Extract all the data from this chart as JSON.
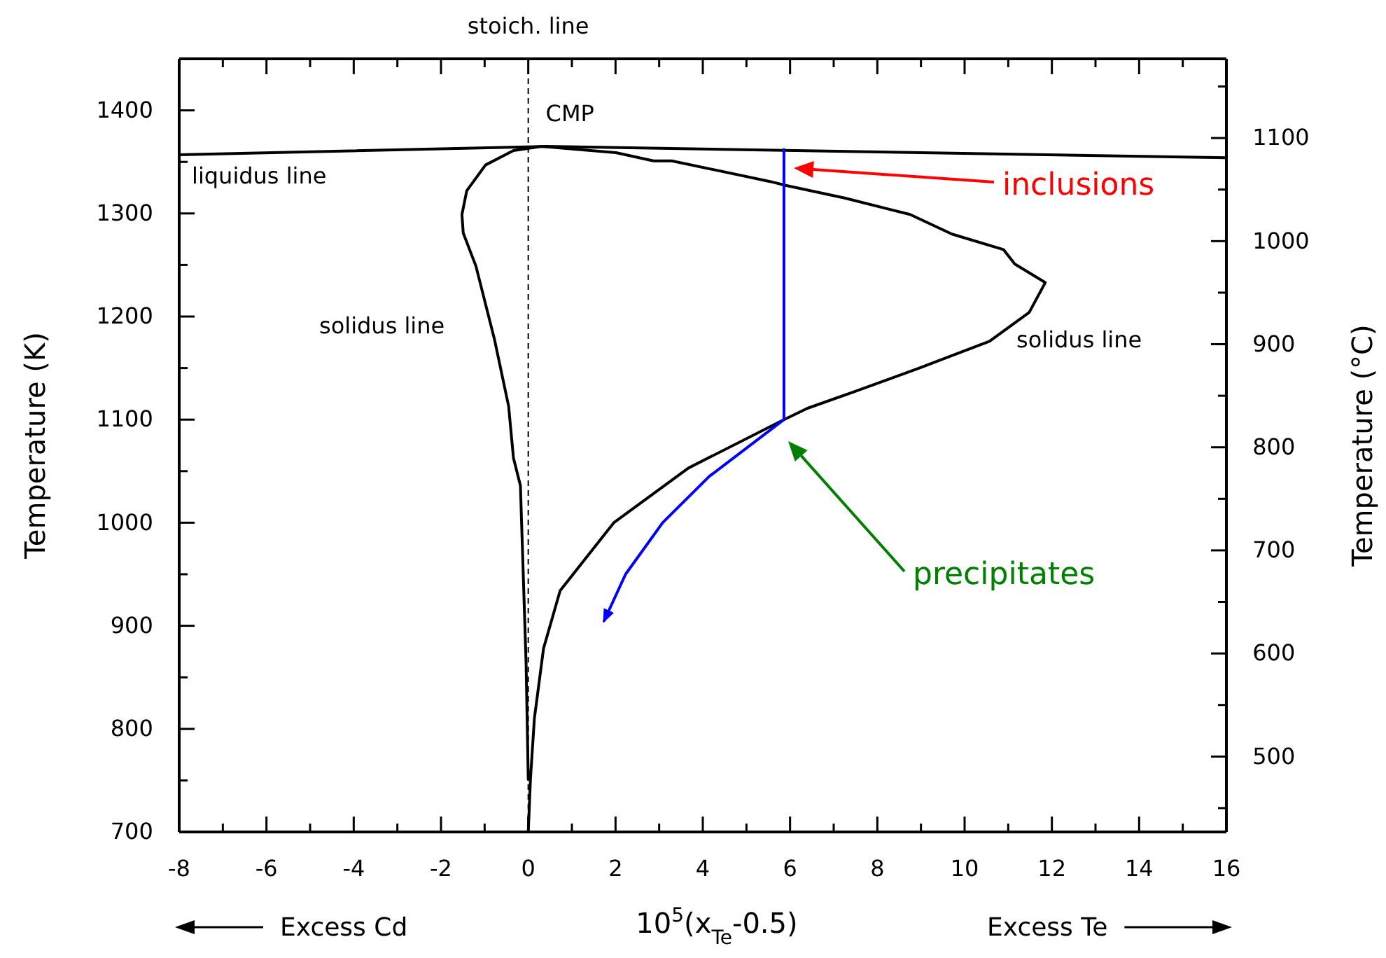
{
  "chart_data": {
    "type": "line",
    "xlabel": "10$^{5}$(x$_{Te}$-0.5)",
    "ylabel": "Temperature (K)",
    "y2label": "Temperature (°C)",
    "xlim": [
      -8,
      16
    ],
    "ylim": [
      700,
      1450
    ],
    "y2lim": [
      426.85,
      1176.85
    ],
    "xticks": [
      -8,
      {
        "value": -7,
        "label": null
      },
      -6,
      {
        "value": -5,
        "label": null
      },
      -4,
      {
        "value": -3,
        "label": null
      },
      -2,
      {
        "value": -1,
        "label": null
      },
      0,
      {
        "value": 1,
        "label": null
      },
      2,
      {
        "value": 3,
        "label": null
      },
      4,
      {
        "value": 5,
        "label": null
      },
      6,
      {
        "value": 7,
        "label": null
      },
      8,
      {
        "value": 9,
        "label": null
      },
      10,
      {
        "value": 11,
        "label": null
      },
      12,
      {
        "value": 13,
        "label": null
      },
      14,
      {
        "value": 15,
        "label": null
      },
      16
    ],
    "yticks": [
      700,
      {
        "value": 750,
        "label": null
      },
      800,
      {
        "value": 850,
        "label": null
      },
      900,
      {
        "value": 950,
        "label": null
      },
      1000,
      {
        "value": 1050,
        "label": null
      },
      1100,
      {
        "value": 1150,
        "label": null
      },
      1200,
      {
        "value": 1250,
        "label": null
      },
      1300,
      {
        "value": 1350,
        "label": null
      },
      1400,
      {
        "value": 1450,
        "label": null
      }
    ],
    "y2ticks": [
      {
        "value": 450,
        "label": null
      },
      500,
      {
        "value": 550,
        "label": null
      },
      600,
      {
        "value": 650,
        "label": null
      },
      700,
      {
        "value": 750,
        "label": null
      },
      800,
      {
        "value": 850,
        "label": null
      },
      900,
      {
        "value": 950,
        "label": null
      },
      1000,
      {
        "value": 1050,
        "label": null
      },
      1100,
      {
        "value": 1150,
        "label": null
      }
    ],
    "grid": false,
    "marker": "none",
    "series": [
      {
        "color": "#000000",
        "x": [
          -8,
          0.4,
          16
        ],
        "values": [
          1357,
          1365,
          1354
        ]
      },
      {
        "color": "#000000",
        "x": [
          0,
          -0.05,
          -0.18,
          -0.34,
          -0.45,
          -0.77,
          -1.2,
          -1.49,
          -1.52,
          -1.41,
          -0.98,
          -0.34,
          0.3,
          2.01,
          2.87,
          3.29,
          5.54,
          5.92,
          7.25,
          8.75,
          9.71,
          10.89,
          11.15,
          11.85,
          11.48,
          10.57,
          8.96,
          7.47,
          6.4,
          5.86,
          3.67,
          1.96,
          0.73,
          0.35,
          0.14,
          0.05,
          0
        ],
        "values": [
          751,
          864,
          1036,
          1063,
          1113,
          1177,
          1249,
          1281,
          1299,
          1322,
          1347,
          1361,
          1365,
          1359,
          1351,
          1351,
          1331,
          1327,
          1315,
          1299,
          1280,
          1265,
          1251,
          1233,
          1204,
          1176,
          1150,
          1127,
          1111,
          1100,
          1053,
          1000,
          934,
          878,
          810,
          751,
          700
        ]
      },
      {
        "color": "#0000ff",
        "x": [
          5.86,
          5.86
        ],
        "values": [
          1100,
          1362
        ]
      },
      {
        "color": "#0000ff",
        "x": [
          5.86,
          4.15,
          3.08,
          2.23,
          1.74
        ],
        "values": [
          1100,
          1045,
          1000,
          950,
          905
        ]
      }
    ],
    "ref_lines": [
      {
        "axis": "x",
        "value": 0,
        "label": "stoich. line",
        "color": "#000000",
        "line_style": "dashed"
      }
    ],
    "annotations": [
      {
        "text": "CMP",
        "x": 0.4,
        "y": 1365
      },
      "liquidus line",
      "solidus line",
      "solidus line",
      "inclusions",
      "precipitates",
      "Excess Cd",
      "Excess Te"
    ]
  }
}
